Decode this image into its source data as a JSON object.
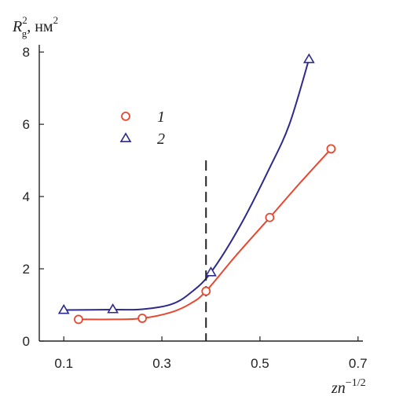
{
  "chart_data": {
    "type": "scatter",
    "ylabel_parts": {
      "sym": "R",
      "sub": "g",
      "sup": "2",
      "unit": ", нм",
      "unit_sup": "2"
    },
    "xlabel_parts": {
      "base": "zn",
      "sup": "−1/2"
    },
    "xlim": [
      0.05,
      0.71
    ],
    "ylim": [
      0,
      8.2
    ],
    "xticks": [
      0.1,
      0.3,
      0.5,
      0.7
    ],
    "xtick_labels": [
      "0.1",
      "0.3",
      "0.5",
      "0.7"
    ],
    "yticks": [
      0,
      2,
      4,
      6,
      8
    ],
    "ytick_labels": [
      "0",
      "2",
      "4",
      "6",
      "8"
    ],
    "vline_x": 0.39,
    "vline_y_top": 5.0,
    "legend_position": "upper-left-inside",
    "series": [
      {
        "name": "1",
        "marker": "circle",
        "color": "#e8472f",
        "points": [
          [
            0.13,
            0.6
          ],
          [
            0.26,
            0.63
          ],
          [
            0.39,
            1.38
          ],
          [
            0.52,
            3.42
          ],
          [
            0.645,
            5.32
          ]
        ],
        "curve": [
          [
            0.13,
            0.6
          ],
          [
            0.2,
            0.6
          ],
          [
            0.26,
            0.63
          ],
          [
            0.32,
            0.8
          ],
          [
            0.36,
            1.05
          ],
          [
            0.39,
            1.38
          ],
          [
            0.45,
            2.35
          ],
          [
            0.52,
            3.42
          ],
          [
            0.58,
            4.35
          ],
          [
            0.645,
            5.32
          ]
        ]
      },
      {
        "name": "2",
        "marker": "triangle",
        "color": "#2e2a8c",
        "points": [
          [
            0.1,
            0.86
          ],
          [
            0.2,
            0.88
          ],
          [
            0.4,
            1.9
          ],
          [
            0.6,
            7.8
          ]
        ],
        "curve": [
          [
            0.1,
            0.86
          ],
          [
            0.2,
            0.87
          ],
          [
            0.26,
            0.88
          ],
          [
            0.32,
            1.02
          ],
          [
            0.36,
            1.35
          ],
          [
            0.4,
            1.9
          ],
          [
            0.46,
            3.2
          ],
          [
            0.52,
            4.8
          ],
          [
            0.56,
            6.0
          ],
          [
            0.6,
            7.8
          ]
        ]
      }
    ],
    "colors": {
      "axis": "#222222",
      "vline": "#222222"
    }
  }
}
